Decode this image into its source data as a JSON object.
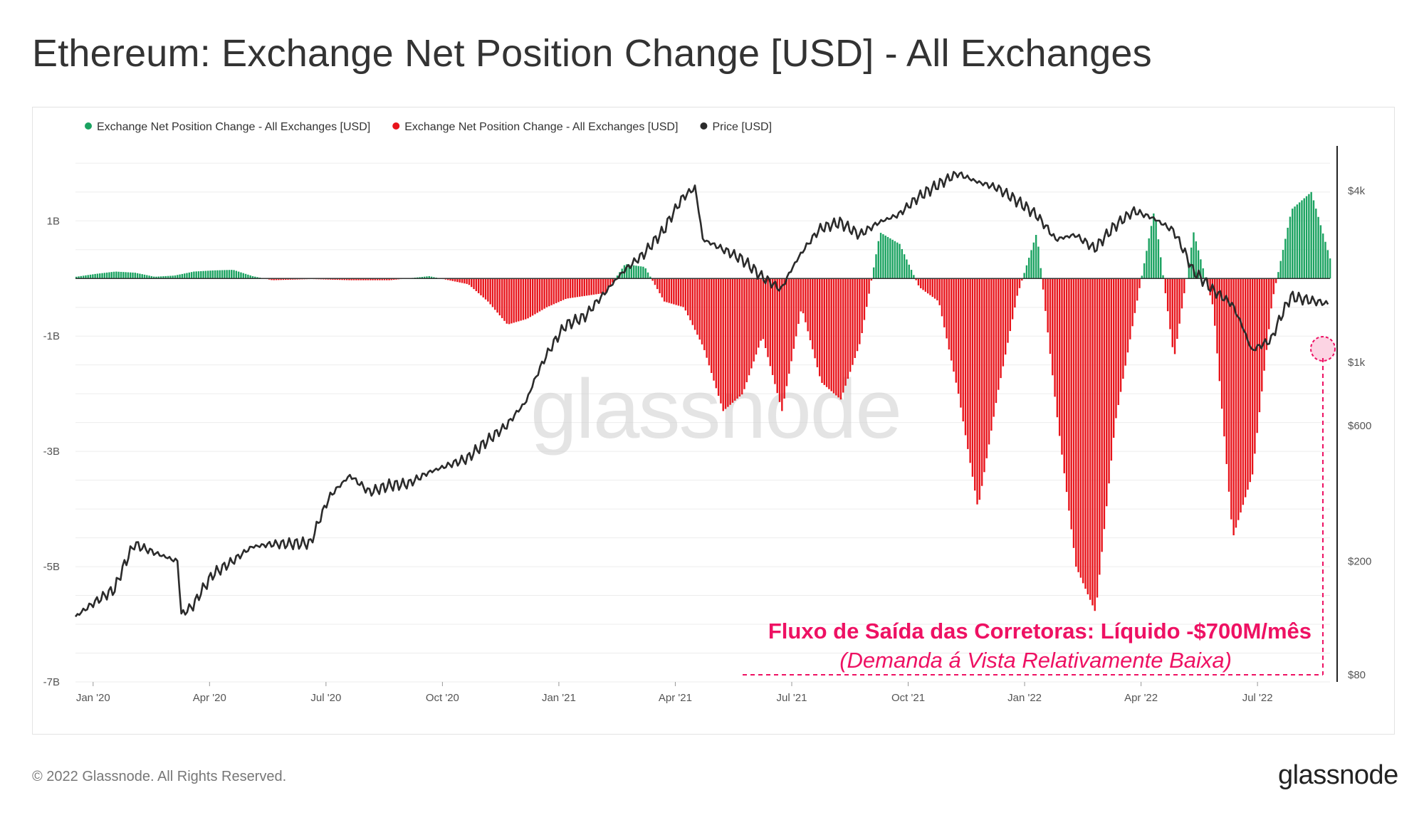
{
  "title": "Ethereum: Exchange Net Position Change [USD] - All Exchanges",
  "footer": "© 2022 Glassnode. All Rights Reserved.",
  "logo": "glassnode",
  "watermark": "glassnode",
  "colors": {
    "positive": "#1aa260",
    "negative": "#e8141b",
    "price": "#2b2b2b",
    "annotation": "#ee1163"
  },
  "chart_data": {
    "type": "bar",
    "legend": [
      {
        "label": "Exchange Net Position Change - All Exchanges [USD]",
        "color": "#1aa260"
      },
      {
        "label": "Exchange Net Position Change - All Exchanges [USD]",
        "color": "#e8141b"
      },
      {
        "label": "Price [USD]",
        "color": "#2b2b2b"
      }
    ],
    "legend_placement": "top-left",
    "grid": true,
    "left_axis": {
      "ticks": [
        "1B",
        "-1B",
        "-3B",
        "-5B",
        "-7B"
      ],
      "values": [
        1,
        -1,
        -3,
        -5,
        -7
      ],
      "range": [
        -7,
        2.3
      ],
      "unit": "B USD"
    },
    "right_axis": {
      "ticks": [
        "$4k",
        "$1k",
        "$600",
        "$200",
        "$80"
      ],
      "values": [
        4000,
        1000,
        600,
        200,
        80
      ],
      "scale": "log"
    },
    "x_ticks": [
      "Jan '20",
      "Apr '20",
      "Jul '20",
      "Oct '20",
      "Jan '21",
      "Apr '21",
      "Jul '21",
      "Oct '21",
      "Jan '22",
      "Apr '22",
      "Jul '22"
    ],
    "x_range": [
      "2019-12-20",
      "2022-08-25"
    ],
    "net_position_change": [
      [
        0,
        0.03
      ],
      [
        0.5,
        0.08
      ],
      [
        1,
        0.12
      ],
      [
        1.5,
        0.1
      ],
      [
        2,
        0.03
      ],
      [
        2.5,
        0.05
      ],
      [
        3,
        0.12
      ],
      [
        3.5,
        0.14
      ],
      [
        4,
        0.15
      ],
      [
        4.5,
        0.04
      ],
      [
        5,
        -0.03
      ],
      [
        5.5,
        -0.02
      ],
      [
        6,
        -0.01
      ],
      [
        7,
        -0.03
      ],
      [
        8,
        -0.03
      ],
      [
        9,
        0.04
      ],
      [
        10,
        -0.1
      ],
      [
        10.5,
        -0.4
      ],
      [
        11,
        -0.8
      ],
      [
        11.5,
        -0.7
      ],
      [
        12,
        -0.5
      ],
      [
        12.5,
        -0.35
      ],
      [
        13,
        -0.3
      ],
      [
        13.5,
        -0.25
      ],
      [
        14,
        0.25
      ],
      [
        14.5,
        0.2
      ],
      [
        15,
        -0.4
      ],
      [
        15.5,
        -0.5
      ],
      [
        16,
        -1.2
      ],
      [
        16.5,
        -2.3
      ],
      [
        17,
        -2.0
      ],
      [
        17.5,
        -1.0
      ],
      [
        18,
        -2.3
      ],
      [
        18.5,
        -0.5
      ],
      [
        19,
        -1.8
      ],
      [
        19.5,
        -2.1
      ],
      [
        20,
        -1.1
      ],
      [
        20.5,
        0.8
      ],
      [
        21,
        0.6
      ],
      [
        21.5,
        -0.15
      ],
      [
        22,
        -0.4
      ],
      [
        22.5,
        -2.0
      ],
      [
        23,
        -4.0
      ],
      [
        23.5,
        -2.0
      ],
      [
        24,
        -0.3
      ],
      [
        24.5,
        0.8
      ],
      [
        25,
        -2.3
      ],
      [
        25.5,
        -5.0
      ],
      [
        26,
        -5.8
      ],
      [
        26.5,
        -2.5
      ],
      [
        27,
        -0.6
      ],
      [
        27.5,
        1.2
      ],
      [
        28,
        -1.4
      ],
      [
        28.5,
        0.8
      ],
      [
        29,
        -0.5
      ],
      [
        29.5,
        -4.5
      ],
      [
        30,
        -3.4
      ],
      [
        30.5,
        -0.4
      ],
      [
        31,
        1.2
      ],
      [
        31.5,
        1.5
      ],
      [
        32,
        0.3
      ]
    ],
    "price_usd": [
      [
        0,
        128
      ],
      [
        1,
        160
      ],
      [
        1.5,
        230
      ],
      [
        2,
        215
      ],
      [
        2.6,
        200
      ],
      [
        2.7,
        130
      ],
      [
        3,
        140
      ],
      [
        3.5,
        180
      ],
      [
        4,
        200
      ],
      [
        4.5,
        225
      ],
      [
        5,
        230
      ],
      [
        6,
        232
      ],
      [
        6.5,
        340
      ],
      [
        7,
        400
      ],
      [
        7.5,
        350
      ],
      [
        8,
        370
      ],
      [
        8.5,
        375
      ],
      [
        9,
        410
      ],
      [
        10,
        460
      ],
      [
        11,
        600
      ],
      [
        11.5,
        730
      ],
      [
        12,
        1050
      ],
      [
        12.5,
        1350
      ],
      [
        13,
        1450
      ],
      [
        13.5,
        1750
      ],
      [
        14,
        2100
      ],
      [
        14.5,
        2400
      ],
      [
        15,
        2900
      ],
      [
        15.5,
        3800
      ],
      [
        15.8,
        4100
      ],
      [
        16,
        2700
      ],
      [
        16.5,
        2500
      ],
      [
        17,
        2300
      ],
      [
        17.5,
        2000
      ],
      [
        18,
        1800
      ],
      [
        18.5,
        2400
      ],
      [
        19,
        2950
      ],
      [
        19.5,
        3100
      ],
      [
        20,
        2800
      ],
      [
        20.5,
        3100
      ],
      [
        21,
        3300
      ],
      [
        21.5,
        3800
      ],
      [
        22,
        4200
      ],
      [
        22.5,
        4600
      ],
      [
        23,
        4300
      ],
      [
        23.5,
        4100
      ],
      [
        24,
        3700
      ],
      [
        24.5,
        3300
      ],
      [
        25,
        2700
      ],
      [
        25.5,
        2800
      ],
      [
        26,
        2500
      ],
      [
        26.5,
        3000
      ],
      [
        27,
        3400
      ],
      [
        27.5,
        3200
      ],
      [
        28,
        2900
      ],
      [
        28.5,
        2100
      ],
      [
        29,
        1800
      ],
      [
        29.5,
        1600
      ],
      [
        30,
        1100
      ],
      [
        30.5,
        1200
      ],
      [
        31,
        1700
      ],
      [
        31.5,
        1650
      ],
      [
        32,
        1600
      ]
    ],
    "annotations": [
      "Fluxo de Saída das Corretoras: Líquido -$700M/mês",
      "(Demanda á Vista Relativamente Baixa)"
    ]
  }
}
